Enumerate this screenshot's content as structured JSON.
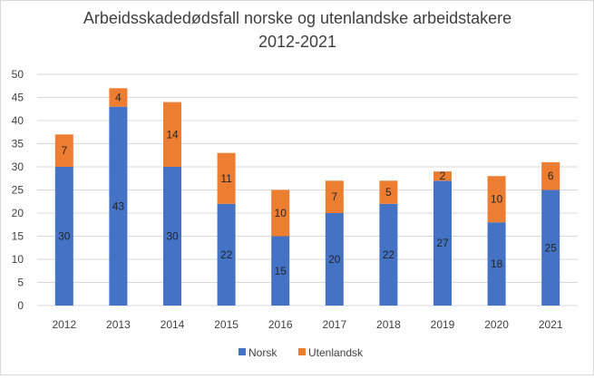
{
  "chart_data": {
    "type": "bar",
    "stacked": true,
    "title": "Arbeidsskadedødsfall norske og utenlandske arbeidstakere",
    "subtitle": "2012-2021",
    "xlabel": "",
    "ylabel": "",
    "categories": [
      "2012",
      "2013",
      "2014",
      "2015",
      "2016",
      "2017",
      "2018",
      "2019",
      "2020",
      "2021"
    ],
    "series": [
      {
        "name": "Norsk",
        "color": "#4472C4",
        "values": [
          30,
          43,
          30,
          22,
          15,
          20,
          22,
          27,
          18,
          25
        ]
      },
      {
        "name": "Utenlandsk",
        "color": "#ED7D31",
        "values": [
          7,
          4,
          14,
          11,
          10,
          7,
          5,
          2,
          10,
          6
        ]
      }
    ],
    "ylim": [
      0,
      50
    ],
    "yticks": [
      "0",
      "5",
      "10",
      "15",
      "20",
      "25",
      "30",
      "35",
      "40",
      "45",
      "50"
    ],
    "grid": true,
    "legend": "bottom",
    "data_labels": true
  }
}
